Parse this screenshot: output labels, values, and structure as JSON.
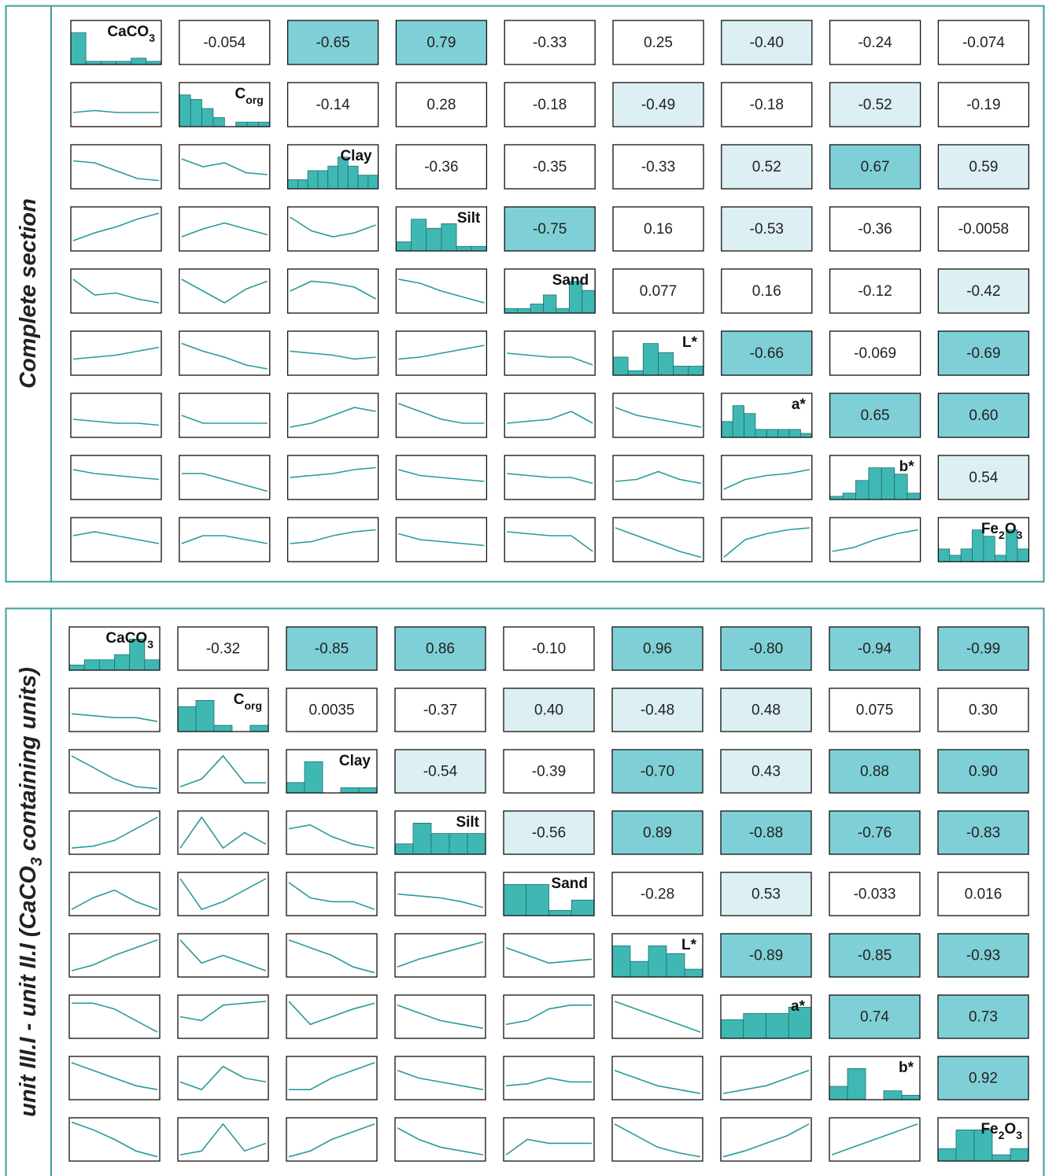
{
  "chart_data": [
    {
      "type": "pairs",
      "title": [
        "Complete section"
      ],
      "labels": [
        [
          "CaCO",
          "3"
        ],
        [
          "C",
          "org"
        ],
        [
          "Clay"
        ],
        [
          "Silt"
        ],
        [
          "Sand"
        ],
        [
          "L*"
        ],
        [
          "a*"
        ],
        [
          "b*"
        ],
        [
          "Fe",
          "2",
          "O",
          "3"
        ]
      ],
      "correlations": [
        [
          -0.054,
          -0.65,
          0.79,
          -0.33,
          0.25,
          -0.4,
          -0.24,
          -0.074
        ],
        [
          -0.14,
          0.28,
          -0.18,
          -0.49,
          -0.18,
          -0.52,
          -0.19
        ],
        [
          -0.36,
          -0.35,
          -0.33,
          0.52,
          0.67,
          0.59
        ],
        [
          -0.75,
          0.16,
          -0.53,
          -0.36,
          -0.0058
        ],
        [
          0.077,
          0.16,
          -0.12,
          -0.42
        ],
        [
          -0.66,
          -0.069,
          -0.69
        ],
        [
          0.65,
          0.6
        ],
        [
          0.54
        ]
      ],
      "value_labels": [
        [
          "-0.054",
          "-0.65",
          "0.79",
          "-0.33",
          "0.25",
          "-0.40",
          "-0.24",
          "-0.074"
        ],
        [
          "-0.14",
          "0.28",
          "-0.18",
          "-0.49",
          "-0.18",
          "-0.52",
          "-0.19"
        ],
        [
          "-0.36",
          "-0.35",
          "-0.33",
          "0.52",
          "0.67",
          "0.59"
        ],
        [
          "-0.75",
          "0.16",
          "-0.53",
          "-0.36",
          "-0.0058"
        ],
        [
          "0.077",
          "0.16",
          "-0.12",
          "-0.42"
        ],
        [
          "-0.66",
          "-0.069",
          "-0.69"
        ],
        [
          "0.65",
          "0.60"
        ],
        [
          "0.54"
        ]
      ],
      "cell_colors": [
        [
          "#ffffff",
          "#7fd0d6",
          "#7fd0d6",
          "#ffffff",
          "#ffffff",
          "#dcefF3",
          "#ffffff",
          "#ffffff"
        ],
        [
          "#ffffff",
          "#ffffff",
          "#ffffff",
          "#dcefF3",
          "#ffffff",
          "#dcefF3",
          "#ffffff"
        ],
        [
          "#ffffff",
          "#ffffff",
          "#ffffff",
          "#dcefF3",
          "#7fd0d6",
          "#dcefF3"
        ],
        [
          "#7fd0d6",
          "#ffffff",
          "#dcefF3",
          "#ffffff",
          "#ffffff"
        ],
        [
          "#ffffff",
          "#ffffff",
          "#ffffff",
          "#dcefF3"
        ],
        [
          "#7fd0d6",
          "#ffffff",
          "#7fd0d6"
        ],
        [
          "#7fd0d6",
          "#7fd0d6"
        ],
        [
          "#dcefF3"
        ]
      ],
      "histograms": [
        [
          10,
          1,
          1,
          1,
          2,
          1
        ],
        [
          7,
          6,
          4,
          2,
          0,
          1,
          1,
          1
        ],
        [
          2,
          2,
          4,
          4,
          5,
          7,
          5,
          3,
          3
        ],
        [
          2,
          7,
          5,
          6,
          1,
          1
        ],
        [
          1,
          1,
          2,
          4,
          1,
          7,
          5
        ],
        [
          4,
          1,
          7,
          5,
          2,
          2
        ],
        [
          4,
          8,
          6,
          2,
          2,
          2,
          2,
          1
        ],
        [
          1,
          2,
          6,
          10,
          10,
          8,
          2
        ],
        [
          2,
          1,
          2,
          5,
          4,
          1,
          5,
          2
        ]
      ],
      "smooth_lines": [
        [],
        [
          [
            0.3,
            0.35,
            0.3,
            0.3,
            0.3
          ]
        ],
        [
          [
            0.65,
            0.6,
            0.4,
            0.2,
            0.15
          ],
          [
            0.7,
            0.5,
            0.6,
            0.35,
            0.3
          ]
        ],
        [
          [
            0.2,
            0.4,
            0.55,
            0.75,
            0.9
          ],
          [
            0.3,
            0.5,
            0.65,
            0.5,
            0.35
          ],
          [
            0.8,
            0.45,
            0.3,
            0.4,
            0.6
          ]
        ],
        [
          [
            0.8,
            0.4,
            0.45,
            0.3,
            0.2
          ],
          [
            0.8,
            0.5,
            0.2,
            0.55,
            0.75
          ],
          [
            0.5,
            0.75,
            0.7,
            0.6,
            0.3
          ],
          [
            0.8,
            0.7,
            0.5,
            0.35,
            0.2
          ]
        ],
        [
          [
            0.35,
            0.4,
            0.45,
            0.55,
            0.65
          ],
          [
            0.75,
            0.55,
            0.4,
            0.2,
            0.1
          ],
          [
            0.55,
            0.5,
            0.45,
            0.35,
            0.4
          ],
          [
            0.35,
            0.4,
            0.5,
            0.6,
            0.7
          ],
          [
            0.5,
            0.45,
            0.4,
            0.4,
            0.2
          ]
        ],
        [
          [
            0.4,
            0.35,
            0.3,
            0.3,
            0.25
          ],
          [
            0.5,
            0.3,
            0.3,
            0.3,
            0.3
          ],
          [
            0.2,
            0.3,
            0.5,
            0.7,
            0.6
          ],
          [
            0.8,
            0.6,
            0.4,
            0.3,
            0.3
          ],
          [
            0.3,
            0.35,
            0.4,
            0.6,
            0.3
          ],
          [
            0.7,
            0.5,
            0.4,
            0.3,
            0.2
          ]
        ],
        [
          [
            0.7,
            0.6,
            0.55,
            0.5,
            0.45
          ],
          [
            0.6,
            0.6,
            0.45,
            0.3,
            0.15
          ],
          [
            0.5,
            0.55,
            0.6,
            0.7,
            0.75
          ],
          [
            0.7,
            0.55,
            0.5,
            0.45,
            0.4
          ],
          [
            0.6,
            0.55,
            0.5,
            0.5,
            0.35
          ],
          [
            0.4,
            0.45,
            0.65,
            0.45,
            0.35
          ],
          [
            0.2,
            0.45,
            0.55,
            0.6,
            0.7
          ]
        ],
        [
          [
            0.6,
            0.7,
            0.6,
            0.5,
            0.4
          ],
          [
            0.4,
            0.6,
            0.6,
            0.5,
            0.4
          ],
          [
            0.4,
            0.45,
            0.6,
            0.7,
            0.75
          ],
          [
            0.65,
            0.5,
            0.45,
            0.4,
            0.35
          ],
          [
            0.7,
            0.65,
            0.6,
            0.6,
            0.2
          ],
          [
            0.8,
            0.6,
            0.4,
            0.2,
            0.05
          ],
          [
            0.05,
            0.5,
            0.65,
            0.75,
            0.8
          ],
          [
            0.2,
            0.3,
            0.5,
            0.65,
            0.75
          ]
        ]
      ],
      "bar_color": "#3fb8b4",
      "line_color": "#2a9a9a"
    },
    {
      "type": "pairs",
      "title": [
        "unit III.I - unit II.I (CaCO",
        "3",
        " containing units)"
      ],
      "labels": [
        [
          "CaCO",
          "3"
        ],
        [
          "C",
          "org"
        ],
        [
          "Clay"
        ],
        [
          "Silt"
        ],
        [
          "Sand"
        ],
        [
          "L*"
        ],
        [
          "a*"
        ],
        [
          "b*"
        ],
        [
          "Fe",
          "2",
          "O",
          "3"
        ]
      ],
      "correlations": [
        [
          -0.32,
          -0.85,
          0.86,
          -0.1,
          0.96,
          -0.8,
          -0.94,
          -0.99
        ],
        [
          0.0035,
          -0.37,
          0.4,
          -0.48,
          0.48,
          0.075,
          0.3
        ],
        [
          -0.54,
          -0.39,
          -0.7,
          0.43,
          0.88,
          0.9
        ],
        [
          -0.56,
          0.89,
          -0.88,
          -0.76,
          -0.83
        ],
        [
          -0.28,
          0.53,
          -0.033,
          0.016
        ],
        [
          -0.89,
          -0.85,
          -0.93
        ],
        [
          0.74,
          0.73
        ],
        [
          0.92
        ]
      ],
      "value_labels": [
        [
          "-0.32",
          "-0.85",
          "0.86",
          "-0.10",
          "0.96",
          "-0.80",
          "-0.94",
          "-0.99"
        ],
        [
          "0.0035",
          "-0.37",
          "0.40",
          "-0.48",
          "0.48",
          "0.075",
          "0.30"
        ],
        [
          "-0.54",
          "-0.39",
          "-0.70",
          "0.43",
          "0.88",
          "0.90"
        ],
        [
          "-0.56",
          "0.89",
          "-0.88",
          "-0.76",
          "-0.83"
        ],
        [
          "-0.28",
          "0.53",
          "-0.033",
          "0.016"
        ],
        [
          "-0.89",
          "-0.85",
          "-0.93"
        ],
        [
          "0.74",
          "0.73"
        ],
        [
          "0.92"
        ]
      ],
      "cell_colors": [
        [
          "#ffffff",
          "#7fd0d6",
          "#7fd0d6",
          "#ffffff",
          "#7fd0d6",
          "#7fd0d6",
          "#7fd0d6",
          "#7fd0d6"
        ],
        [
          "#ffffff",
          "#ffffff",
          "#dcefF3",
          "#dcefF3",
          "#dcefF3",
          "#ffffff",
          "#ffffff"
        ],
        [
          "#dcefF3",
          "#ffffff",
          "#7fd0d6",
          "#dcefF3",
          "#7fd0d6",
          "#7fd0d6"
        ],
        [
          "#dcefF3",
          "#7fd0d6",
          "#7fd0d6",
          "#7fd0d6",
          "#7fd0d6"
        ],
        [
          "#ffffff",
          "#dcefF3",
          "#ffffff",
          "#ffffff"
        ],
        [
          "#7fd0d6",
          "#7fd0d6",
          "#7fd0d6"
        ],
        [
          "#7fd0d6",
          "#7fd0d6"
        ],
        [
          "#7fd0d6"
        ]
      ],
      "histograms": [
        [
          1,
          2,
          2,
          3,
          6,
          2
        ],
        [
          4,
          5,
          1,
          0,
          1
        ],
        [
          2,
          6,
          0,
          1,
          1
        ],
        [
          2,
          6,
          4,
          4,
          4
        ],
        [
          6,
          6,
          1,
          3
        ],
        [
          4,
          2,
          4,
          3,
          1
        ],
        [
          3,
          4,
          4,
          5
        ],
        [
          3,
          7,
          0,
          2,
          1
        ],
        [
          2,
          5,
          5,
          1,
          2
        ]
      ],
      "smooth_lines": [
        [],
        [
          [
            0.4,
            0.35,
            0.3,
            0.3,
            0.2
          ]
        ],
        [
          [
            0.9,
            0.6,
            0.3,
            0.1,
            0.05
          ],
          [
            0.1,
            0.3,
            0.9,
            0.2,
            0.2
          ]
        ],
        [
          [
            0.1,
            0.15,
            0.3,
            0.6,
            0.9
          ],
          [
            0.1,
            0.9,
            0.1,
            0.5,
            0.2
          ],
          [
            0.6,
            0.7,
            0.4,
            0.2,
            0.1
          ]
        ],
        [
          [
            0.1,
            0.4,
            0.6,
            0.3,
            0.1
          ],
          [
            0.9,
            0.1,
            0.3,
            0.6,
            0.9
          ],
          [
            0.8,
            0.4,
            0.3,
            0.3,
            0.1
          ],
          [
            0.5,
            0.45,
            0.4,
            0.3,
            0.15
          ]
        ],
        [
          [
            0.1,
            0.25,
            0.5,
            0.7,
            0.9
          ],
          [
            0.9,
            0.3,
            0.5,
            0.3,
            0.1
          ],
          [
            0.9,
            0.7,
            0.5,
            0.2,
            0.05
          ],
          [
            0.2,
            0.4,
            0.55,
            0.7,
            0.85
          ],
          [
            0.7,
            0.5,
            0.3,
            0.35,
            0.4
          ]
        ],
        [
          [
            0.85,
            0.85,
            0.7,
            0.4,
            0.1
          ],
          [
            0.5,
            0.4,
            0.8,
            0.85,
            0.9
          ],
          [
            0.9,
            0.3,
            0.5,
            0.7,
            0.85
          ],
          [
            0.8,
            0.6,
            0.4,
            0.3,
            0.2
          ],
          [
            0.3,
            0.4,
            0.7,
            0.8,
            0.8
          ],
          [
            0.9,
            0.7,
            0.5,
            0.3,
            0.1
          ]
        ],
        [
          [
            0.9,
            0.7,
            0.5,
            0.3,
            0.2
          ],
          [
            0.4,
            0.2,
            0.8,
            0.5,
            0.4
          ],
          [
            0.2,
            0.2,
            0.5,
            0.7,
            0.9
          ],
          [
            0.7,
            0.5,
            0.4,
            0.3,
            0.2
          ],
          [
            0.3,
            0.35,
            0.5,
            0.4,
            0.4
          ],
          [
            0.7,
            0.5,
            0.3,
            0.2,
            0.1
          ],
          [
            0.1,
            0.2,
            0.3,
            0.5,
            0.7
          ]
        ],
        [
          [
            0.95,
            0.75,
            0.5,
            0.2,
            0.05
          ],
          [
            0.1,
            0.2,
            0.9,
            0.2,
            0.4
          ],
          [
            0.05,
            0.2,
            0.5,
            0.7,
            0.9
          ],
          [
            0.8,
            0.5,
            0.3,
            0.2,
            0.1
          ],
          [
            0.1,
            0.5,
            0.4,
            0.4,
            0.4
          ],
          [
            0.9,
            0.6,
            0.3,
            0.15,
            0.05
          ],
          [
            0.05,
            0.2,
            0.4,
            0.6,
            0.9
          ],
          [
            0.1,
            0.3,
            0.5,
            0.7,
            0.9
          ]
        ]
      ],
      "bar_color": "#3fb8b4",
      "line_color": "#2a9a9a"
    }
  ]
}
